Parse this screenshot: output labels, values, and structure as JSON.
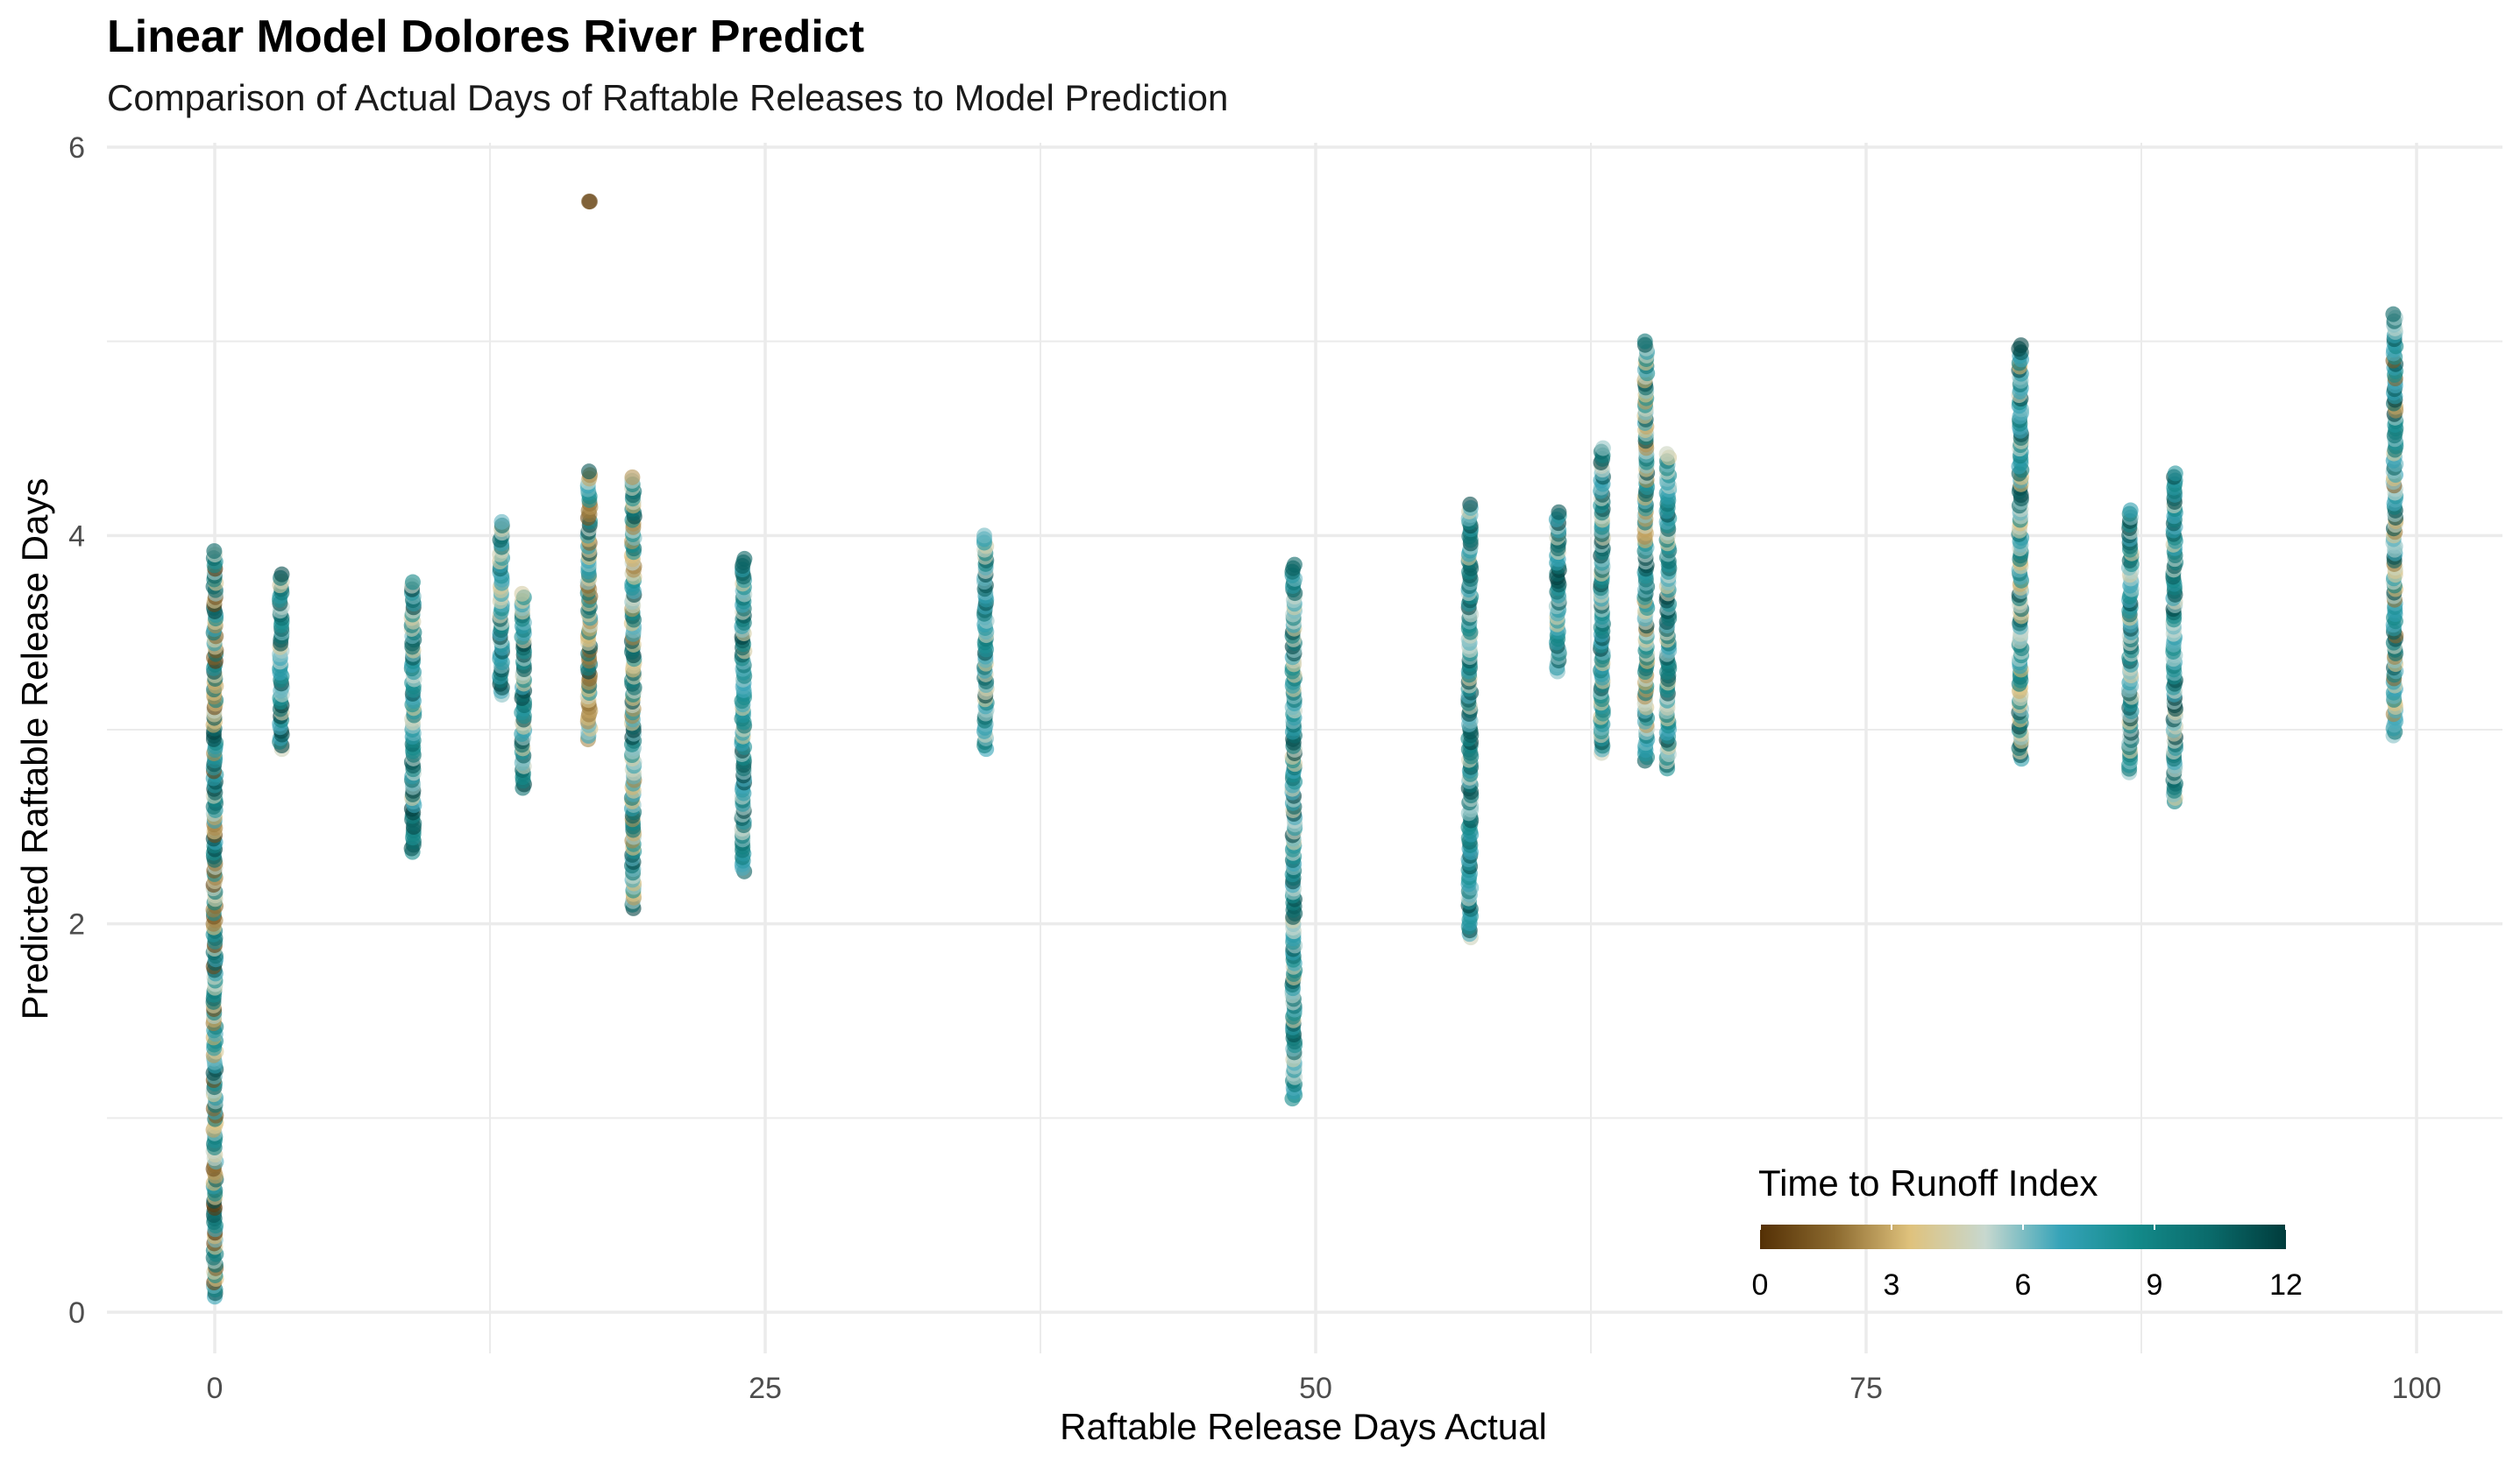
{
  "chart_data": {
    "type": "scatter",
    "title": "Linear Model Dolores River Predict",
    "subtitle": "Comparison of Actual Days of Raftable Releases to Model Prediction",
    "xlabel": "Raftable Release Days Actual",
    "ylabel": "Predicted Raftable Release Days",
    "xlim": [
      -5,
      103
    ],
    "ylim": [
      -0.3,
      6
    ],
    "x_ticks": [
      "0",
      "25",
      "50",
      "75",
      "100"
    ],
    "y_ticks": [
      "0",
      "2",
      "4",
      "6"
    ],
    "grid": true,
    "legend": {
      "title": "Time to Runoff Index",
      "position": "bottom-right",
      "ticks": [
        "0",
        "3",
        "6",
        "9",
        "12"
      ],
      "range": [
        0,
        12
      ],
      "palette": [
        "#543005",
        "#8c6a2f",
        "#dfc27d",
        "#c7d8cf",
        "#35a3b8",
        "#138a8a",
        "#0a6a6a",
        "#003c3c"
      ]
    },
    "columns": [
      {
        "x": 0,
        "y_min": 0.08,
        "y_max": 3.92,
        "color_index_range": [
          0,
          12
        ]
      },
      {
        "x": 3,
        "y_min": 2.9,
        "y_max": 3.8,
        "color_index_range": [
          4,
          12
        ]
      },
      {
        "x": 9,
        "y_min": 2.37,
        "y_max": 3.76,
        "color_index_range": [
          4,
          12
        ]
      },
      {
        "x": 13,
        "y_min": 3.18,
        "y_max": 4.07,
        "color_index_range": [
          4,
          12
        ]
      },
      {
        "x": 14,
        "y_min": 2.7,
        "y_max": 3.7,
        "color_index_range": [
          4,
          12
        ]
      },
      {
        "x": 17,
        "y_min": 2.95,
        "y_max": 4.33,
        "color_index_range": [
          1,
          12
        ]
      },
      {
        "x": 17,
        "y_min": 5.72,
        "y_max": 5.72,
        "color_index_range": [
          0,
          1
        ]
      },
      {
        "x": 19,
        "y_min": 2.08,
        "y_max": 4.3,
        "color_index_range": [
          2,
          12
        ]
      },
      {
        "x": 24,
        "y_min": 2.27,
        "y_max": 3.88,
        "color_index_range": [
          4,
          12
        ]
      },
      {
        "x": 35,
        "y_min": 2.9,
        "y_max": 4.0,
        "color_index_range": [
          4,
          12
        ]
      },
      {
        "x": 49,
        "y_min": 1.1,
        "y_max": 3.85,
        "color_index_range": [
          4,
          12
        ]
      },
      {
        "x": 57,
        "y_min": 1.93,
        "y_max": 4.16,
        "color_index_range": [
          4,
          12
        ]
      },
      {
        "x": 61,
        "y_min": 3.3,
        "y_max": 4.12,
        "color_index_range": [
          4,
          12
        ]
      },
      {
        "x": 63,
        "y_min": 2.88,
        "y_max": 4.45,
        "color_index_range": [
          4,
          12
        ]
      },
      {
        "x": 65,
        "y_min": 2.84,
        "y_max": 5.0,
        "color_index_range": [
          2,
          12
        ]
      },
      {
        "x": 66,
        "y_min": 2.8,
        "y_max": 4.42,
        "color_index_range": [
          4,
          12
        ]
      },
      {
        "x": 82,
        "y_min": 2.85,
        "y_max": 4.98,
        "color_index_range": [
          3,
          12
        ]
      },
      {
        "x": 87,
        "y_min": 2.78,
        "y_max": 4.13,
        "color_index_range": [
          4,
          12
        ]
      },
      {
        "x": 89,
        "y_min": 2.63,
        "y_max": 4.32,
        "color_index_range": [
          4,
          12
        ]
      },
      {
        "x": 99,
        "y_min": 2.97,
        "y_max": 5.14,
        "color_index_range": [
          1,
          12
        ]
      }
    ]
  }
}
